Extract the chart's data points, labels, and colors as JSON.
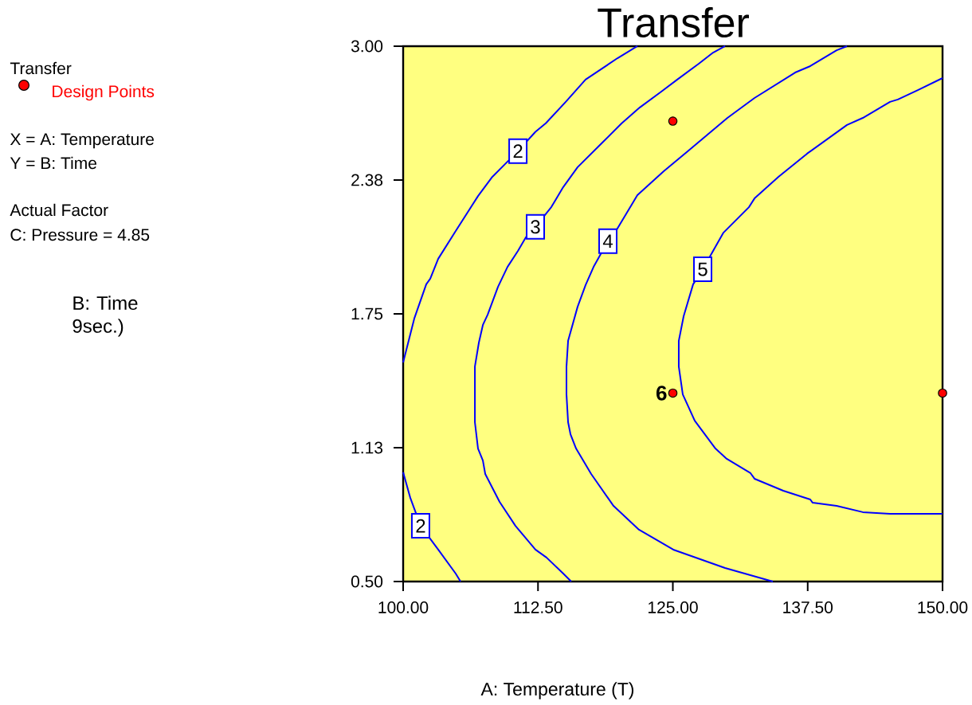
{
  "chart_data": {
    "type": "line",
    "title": "Transfer",
    "xlabel": "A: Temperature (T)",
    "legend_title": "Transfer",
    "legend": "left",
    "xlim": [
      100,
      150
    ],
    "ylim": [
      0.5,
      3.0
    ],
    "xticks": [
      {
        "value": 100,
        "label": "100.00"
      },
      {
        "value": 112.5,
        "label": "112.50"
      },
      {
        "value": 125,
        "label": "125.00"
      },
      {
        "value": 137.5,
        "label": "137.50"
      },
      {
        "value": 150,
        "label": "150.00"
      }
    ],
    "yticks": [
      {
        "value": 0.5,
        "label": "0.50"
      },
      {
        "value": 1.125,
        "label": "1.13"
      },
      {
        "value": 1.75,
        "label": "1.75"
      },
      {
        "value": 2.375,
        "label": "2.38"
      },
      {
        "value": 3.0,
        "label": "3.00"
      }
    ],
    "annotations": [
      "X = A: Temperature",
      "Y = B: Time",
      "Actual Factor",
      "C: Pressure = 4.85",
      "B: Time 9sec.)",
      {
        "text": "6",
        "x": 125,
        "y": 1.38
      }
    ],
    "series": [
      {
        "name": "2",
        "color": "#0000ff",
        "x": [
          121.71,
          119.87,
          116.91,
          115.07,
          113.22,
          112.26,
          110.64,
          109.38,
          108.27,
          106.94,
          104.87,
          103.25,
          102.51,
          102.14,
          101.03,
          100
        ],
        "values": [
          3.0,
          2.944,
          2.844,
          2.74,
          2.64,
          2.6,
          2.51,
          2.446,
          2.39,
          2.3,
          2.137,
          2.007,
          1.914,
          1.888,
          1.728,
          1.523
        ]
      },
      {
        "name": "2",
        "color": "#0000ff",
        "x": [
          100,
          100.66,
          101.62,
          103.25,
          104.87,
          105.32
        ],
        "values": [
          1.01,
          0.891,
          0.76,
          0.649,
          0.537,
          0.5
        ]
      },
      {
        "name": "3",
        "color": "#0000ff",
        "x": [
          129.84,
          128.73,
          127.4,
          125.41,
          123.93,
          121.94,
          120.24,
          118.39,
          116.17,
          114.84,
          113.74,
          112.26,
          111.37,
          110.64,
          109.67,
          108.79,
          107.83,
          107.39,
          107.02,
          106.65,
          106.65,
          106.94,
          107.39,
          107.61,
          108.94,
          110.41,
          112.26,
          113.29,
          114.84,
          115.58
        ],
        "values": [
          3.0,
          2.97,
          2.918,
          2.844,
          2.788,
          2.714,
          2.639,
          2.546,
          2.435,
          2.342,
          2.249,
          2.156,
          2.107,
          2.044,
          1.969,
          1.876,
          1.746,
          1.698,
          1.616,
          1.504,
          1.244,
          1.121,
          1.065,
          1.002,
          0.872,
          0.76,
          0.649,
          0.612,
          0.537,
          0.5
        ]
      },
      {
        "name": "4",
        "color": "#0000ff",
        "x": [
          141.14,
          140.18,
          137.74,
          136.34,
          132.57,
          130.06,
          126.37,
          124.15,
          121.71,
          119.5,
          118.98,
          117.65,
          116.91,
          116.17,
          115.29,
          115.14,
          115.14,
          115.29,
          115.51,
          116.03,
          117.43,
          119.5,
          121.86,
          125.04,
          129.84,
          134.27
        ],
        "values": [
          3.0,
          2.981,
          2.907,
          2.877,
          2.758,
          2.665,
          2.509,
          2.416,
          2.304,
          2.118,
          2.089,
          1.969,
          1.884,
          1.783,
          1.624,
          1.504,
          1.374,
          1.244,
          1.188,
          1.121,
          1.002,
          0.853,
          0.742,
          0.649,
          0.563,
          0.5
        ]
      },
      {
        "name": "5",
        "color": "#0000ff",
        "x": [
          150,
          147.71,
          145.86,
          145.13,
          142.61,
          141.14,
          137.44,
          134.79,
          132.57,
          132.05,
          129.69,
          127.77,
          126.88,
          126.0,
          125.55,
          125.55,
          125.92,
          127.03,
          128.95,
          129.99,
          132.2,
          132.57,
          135.23,
          137.74,
          137.96,
          140.18,
          142.61,
          145.13,
          150
        ],
        "values": [
          2.851,
          2.795,
          2.751,
          2.74,
          2.665,
          2.632,
          2.498,
          2.39,
          2.289,
          2.248,
          2.129,
          1.958,
          1.888,
          1.739,
          1.624,
          1.504,
          1.374,
          1.251,
          1.121,
          1.073,
          1.006,
          0.98,
          0.924,
          0.883,
          0.868,
          0.853,
          0.824,
          0.816,
          0.816
        ]
      },
      {
        "name": "Design Points",
        "type": "scatter",
        "marker": "circle",
        "color": "#ff0000",
        "x": [
          125,
          125,
          150
        ],
        "values": [
          2.65,
          1.38,
          1.38
        ]
      }
    ]
  }
}
